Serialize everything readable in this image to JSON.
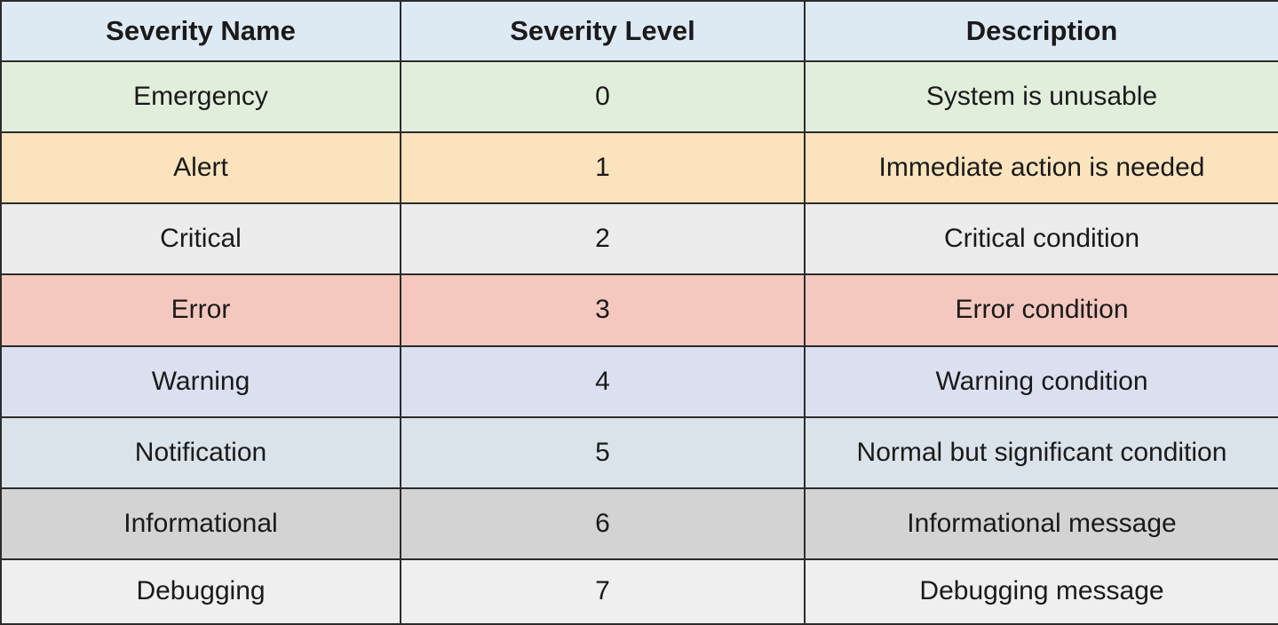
{
  "table": {
    "headers": [
      "Severity Name",
      "Severity Level",
      "Description"
    ],
    "rows": [
      {
        "name": "Emergency",
        "level": "0",
        "description": "System is unusable",
        "bg": "#e2eedc"
      },
      {
        "name": "Alert",
        "level": "1",
        "description": "Immediate action is needed",
        "bg": "#fbe3bd"
      },
      {
        "name": "Critical",
        "level": "2",
        "description": "Critical condition",
        "bg": "#ececec"
      },
      {
        "name": "Error",
        "level": "3",
        "description": "Error condition",
        "bg": "#f4c8bf"
      },
      {
        "name": "Warning",
        "level": "4",
        "description": "Warning condition",
        "bg": "#dbe0f0"
      },
      {
        "name": "Notification",
        "level": "5",
        "description": "Normal but significant condition",
        "bg": "#dae3e9"
      },
      {
        "name": "Informational",
        "level": "6",
        "description": "Informational message",
        "bg": "#d3d3d3"
      },
      {
        "name": "Debugging",
        "level": "7",
        "description": "Debugging message",
        "bg": "#efefef"
      }
    ]
  },
  "colors": {
    "header_bg": "#dde9f3",
    "border": "#2b2b2b",
    "text": "#1a1a1a"
  }
}
